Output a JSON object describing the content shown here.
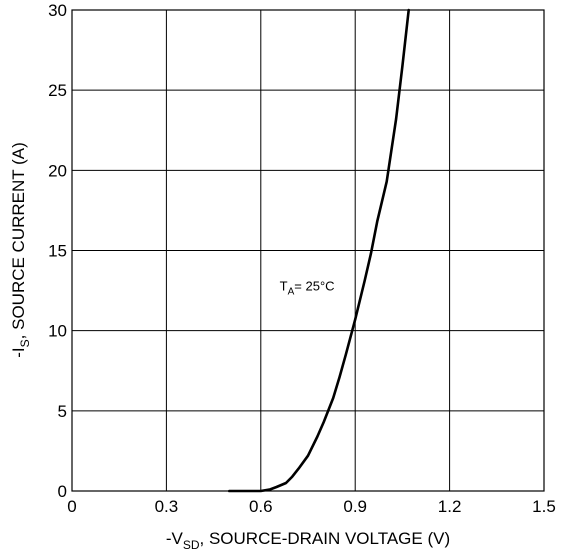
{
  "chart_data": {
    "type": "line",
    "title": "",
    "xlabel": {
      "prefix": "-V",
      "sub": "SD",
      "suffix": ", SOURCE-DRAIN VOLTAGE (V)"
    },
    "ylabel": {
      "prefix": "-I",
      "sub": "S",
      "suffix": ", SOURCE CURRENT (A)"
    },
    "xlim": [
      0,
      1.5
    ],
    "ylim": [
      0,
      30
    ],
    "x_ticks": [
      "0",
      "0.3",
      "0.6",
      "0.9",
      "1.2",
      "1.5"
    ],
    "y_ticks": [
      "0",
      "5",
      "10",
      "15",
      "20",
      "25",
      "30"
    ],
    "grid": true,
    "annotation": {
      "prefix": "T",
      "sub": "A",
      "suffix": "= 25°C",
      "x": 0.66,
      "y": 12.5
    },
    "series": [
      {
        "x": [
          0.5,
          0.6,
          0.63,
          0.65,
          0.68,
          0.7,
          0.72,
          0.75,
          0.78,
          0.8,
          0.83,
          0.85,
          0.87,
          0.9,
          0.93,
          0.95,
          0.97,
          1.0,
          1.03,
          1.05,
          1.07
        ],
        "y": [
          0.0,
          0.0,
          0.1,
          0.25,
          0.5,
          0.9,
          1.4,
          2.2,
          3.4,
          4.3,
          5.8,
          7.1,
          8.5,
          10.7,
          13.1,
          14.8,
          16.8,
          19.3,
          23.2,
          26.5,
          30.0
        ]
      }
    ]
  }
}
